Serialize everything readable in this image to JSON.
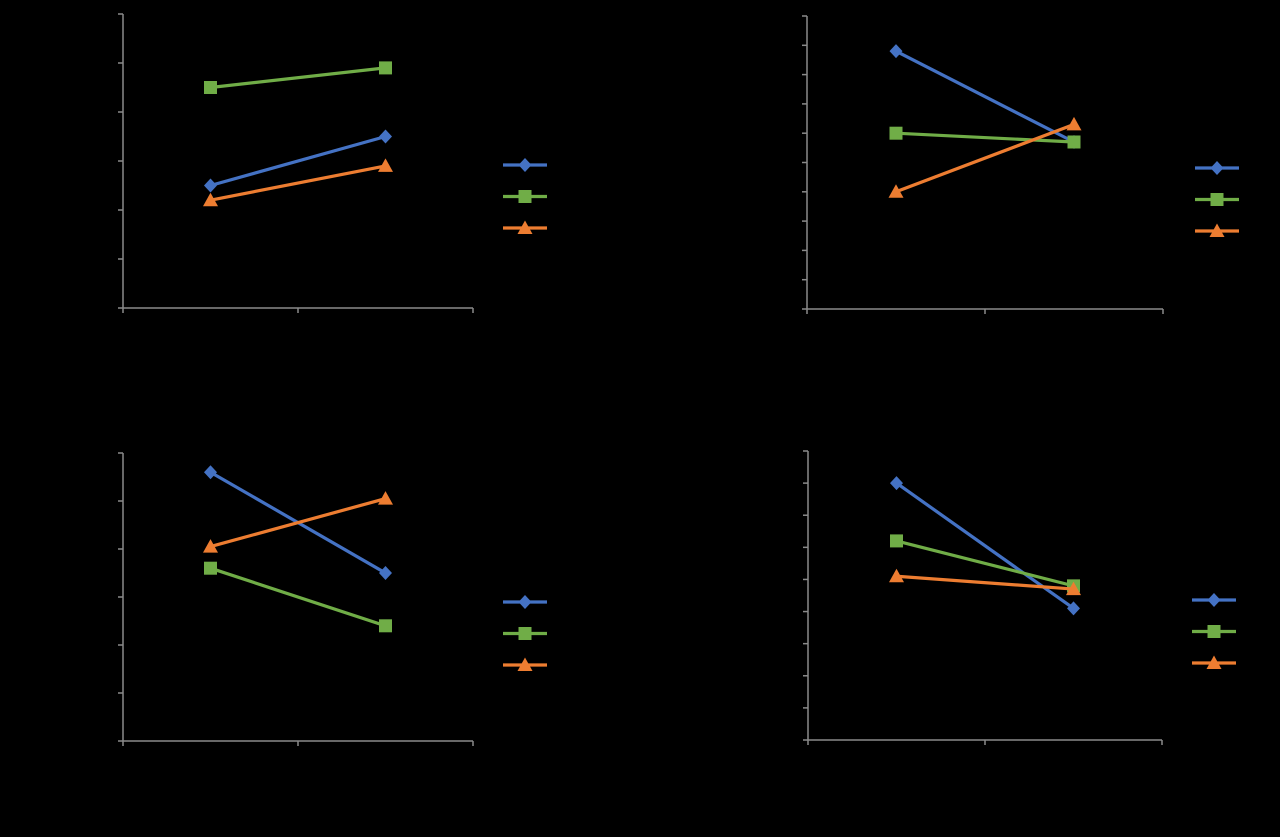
{
  "chart_data": [
    {
      "type": "line",
      "categories": [
        "",
        ""
      ],
      "ylim": [
        0,
        6
      ],
      "grid": false,
      "legend_placement": "right",
      "series": [
        {
          "color": "#4472C4",
          "marker": "diamond",
          "values": [
            2.5,
            3.5
          ]
        },
        {
          "color": "#70AD47",
          "marker": "square",
          "values": [
            4.5,
            4.9
          ]
        },
        {
          "color": "#ED7D31",
          "marker": "triangle",
          "values": [
            2.2,
            2.9
          ]
        }
      ]
    },
    {
      "type": "line",
      "categories": [
        "",
        ""
      ],
      "ylim": [
        0,
        10
      ],
      "grid": false,
      "legend_placement": "right",
      "series": [
        {
          "color": "#4472C4",
          "marker": "diamond",
          "values": [
            8.8,
            5.7
          ]
        },
        {
          "color": "#70AD47",
          "marker": "square",
          "values": [
            6.0,
            5.7
          ]
        },
        {
          "color": "#ED7D31",
          "marker": "triangle",
          "values": [
            4.0,
            6.3
          ]
        }
      ]
    },
    {
      "type": "line",
      "categories": [
        "",
        ""
      ],
      "ylim": [
        0,
        6
      ],
      "grid": false,
      "legend_placement": "right",
      "series": [
        {
          "color": "#4472C4",
          "marker": "diamond",
          "values": [
            5.6,
            3.5
          ]
        },
        {
          "color": "#70AD47",
          "marker": "square",
          "values": [
            3.6,
            2.4
          ]
        },
        {
          "color": "#ED7D31",
          "marker": "triangle",
          "values": [
            4.05,
            5.05
          ]
        }
      ]
    },
    {
      "type": "line",
      "categories": [
        "",
        ""
      ],
      "ylim": [
        0,
        9
      ],
      "grid": false,
      "legend_placement": "right",
      "series": [
        {
          "color": "#4472C4",
          "marker": "diamond",
          "values": [
            8.0,
            4.1
          ]
        },
        {
          "color": "#70AD47",
          "marker": "square",
          "values": [
            6.2,
            4.8
          ]
        },
        {
          "color": "#ED7D31",
          "marker": "triangle",
          "values": [
            5.1,
            4.7
          ]
        }
      ]
    }
  ]
}
